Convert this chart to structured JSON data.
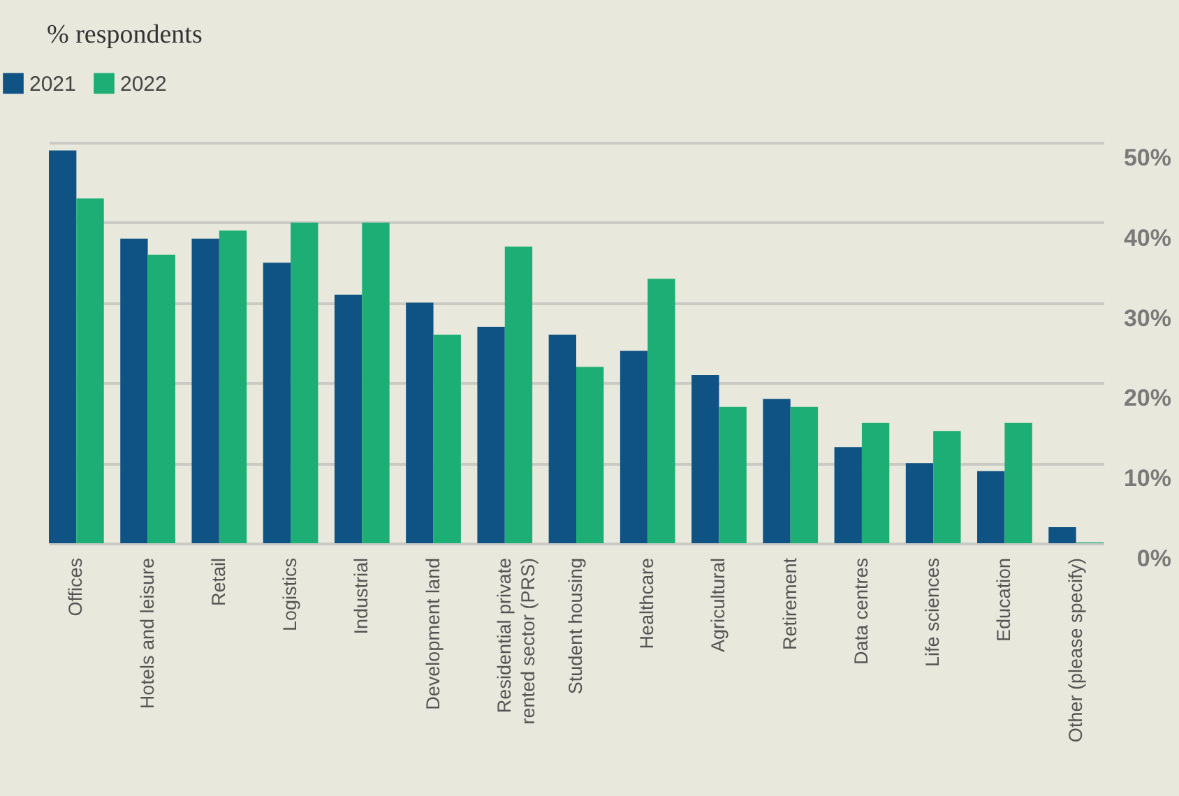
{
  "chart_data": {
    "type": "bar",
    "ylabel": "% respondents",
    "categories": [
      "Offices",
      "Hotels and leisure",
      "Retail",
      "Logistics",
      "Industrial",
      "Development land",
      "Residential private rented sector (PRS)",
      "Student housing",
      "Healthcare",
      "Agricultural",
      "Retirement",
      "Data centres",
      "Life sciences",
      "Education",
      "Other (please specify)"
    ],
    "series": [
      {
        "name": "2021",
        "color": "#0f5385",
        "values": [
          49,
          38,
          38,
          35,
          31,
          30,
          27,
          26,
          24,
          21,
          18,
          12,
          10,
          9,
          2
        ]
      },
      {
        "name": "2022",
        "color": "#1dae76",
        "values": [
          43,
          36,
          39,
          40,
          40,
          26,
          37,
          22,
          33,
          17,
          17,
          15,
          14,
          15,
          0.1
        ]
      }
    ],
    "ylim": [
      0,
      50
    ],
    "yticks": [
      {
        "value": 0,
        "label": "0%"
      },
      {
        "value": 10,
        "label": "10%"
      },
      {
        "value": 20,
        "label": "20%"
      },
      {
        "value": 30,
        "label": "30%"
      },
      {
        "value": 40,
        "label": "40%"
      },
      {
        "value": 50,
        "label": "50%"
      }
    ],
    "grid": "y",
    "legend": "top left"
  }
}
